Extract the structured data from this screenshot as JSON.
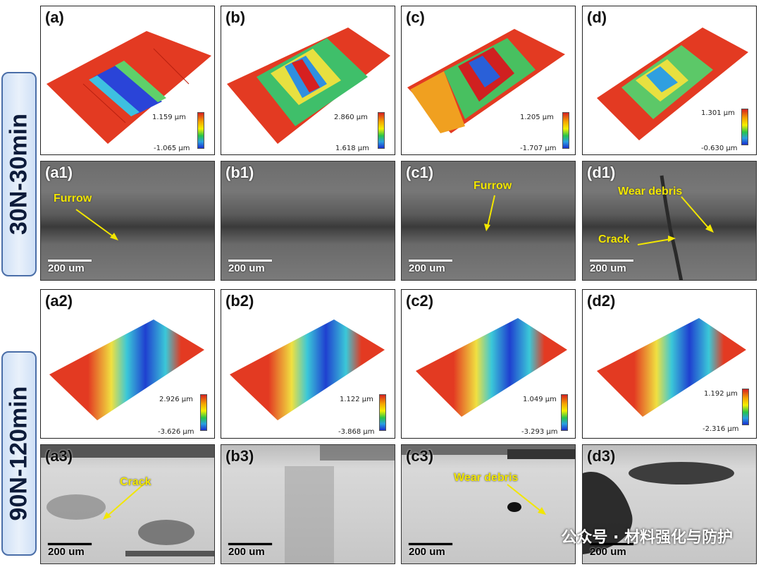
{
  "rows": {
    "top_label": "30N-30min",
    "bottom_label": "90N-120min"
  },
  "panels_3d_top": [
    {
      "label": "(a)",
      "max": "1.159 μm",
      "min": "-1.065 μm"
    },
    {
      "label": "(b)",
      "max": "2.860 μm",
      "min": "1.618 μm"
    },
    {
      "label": "(c)",
      "max": "1.205 μm",
      "min": "-1.707 μm"
    },
    {
      "label": "(d)",
      "max": "1.301 μm",
      "min": "-0.630 μm"
    }
  ],
  "panels_sem_top": [
    {
      "label": "(a1)",
      "scale": "200 um",
      "annotations": [
        "Furrow"
      ]
    },
    {
      "label": "(b1)",
      "scale": "200 um",
      "annotations": []
    },
    {
      "label": "(c1)",
      "scale": "200 um",
      "annotations": [
        "Furrow"
      ]
    },
    {
      "label": "(d1)",
      "scale": "200 um",
      "annotations": [
        "Wear debris",
        "Crack"
      ]
    }
  ],
  "panels_3d_bottom": [
    {
      "label": "(a2)",
      "max": "2.926 μm",
      "min": "-3.626 μm"
    },
    {
      "label": "(b2)",
      "max": "1.122 μm",
      "min": "-3.868 μm"
    },
    {
      "label": "(c2)",
      "max": "1.049 μm",
      "min": "-3.293 μm"
    },
    {
      "label": "(d2)",
      "max": "1.192 μm",
      "min": "-2.316 μm"
    }
  ],
  "panels_sem_bottom": [
    {
      "label": "(a3)",
      "scale": "200 um",
      "annotations": [
        "Crack"
      ]
    },
    {
      "label": "(b3)",
      "scale": "200 um",
      "annotations": []
    },
    {
      "label": "(c3)",
      "scale": "200 um",
      "annotations": [
        "Wear debris"
      ]
    },
    {
      "label": "(d3)",
      "scale": "200 um",
      "annotations": []
    }
  ],
  "watermark": "公众号 · 材料强化与防护",
  "colors": {
    "label_box_border": "#4a6ea8",
    "label_box_fill": "#dbe7f7",
    "annotation": "#f2e600",
    "worn_red": "#e8301e"
  }
}
